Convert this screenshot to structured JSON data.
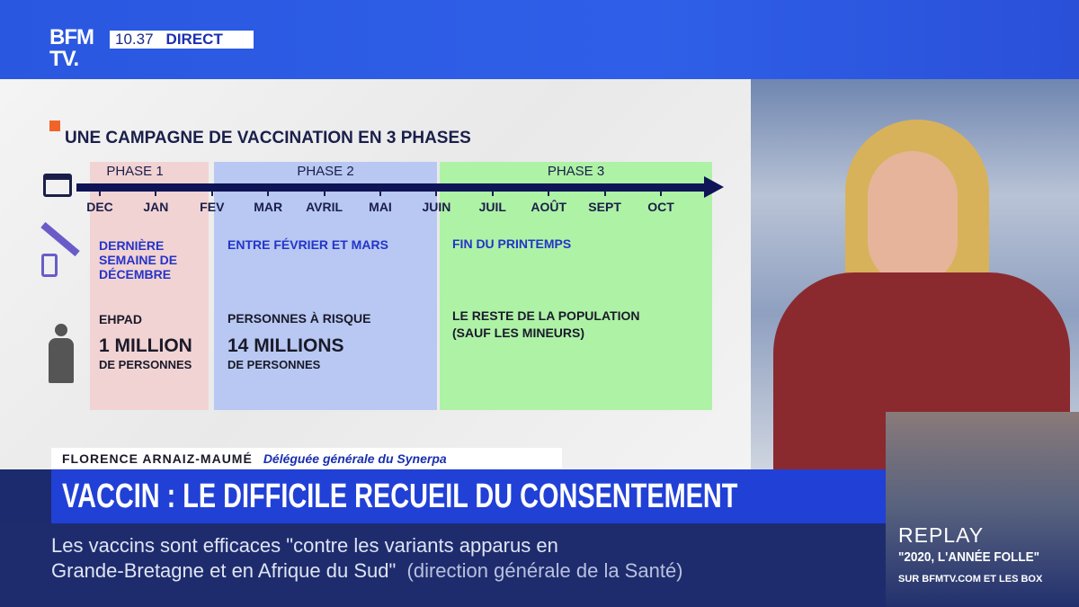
{
  "channel": {
    "logo": "BFM TV.",
    "time": "10.37",
    "live": "DIRECT"
  },
  "graphic": {
    "title": "UNE CAMPAGNE DE VACCINATION EN 3 PHASES",
    "months": [
      "DEC",
      "JAN",
      "FEV",
      "MAR",
      "AVRIL",
      "MAI",
      "JUIN",
      "JUIL",
      "AOÛT",
      "SEPT",
      "OCT"
    ],
    "phases": [
      {
        "label": "PHASE 1",
        "when": "DERNIÈRE SEMAINE DE DÉCEMBRE",
        "who": "EHPAD",
        "count": "1 MILLION",
        "unit": "DE PERSONNES",
        "color": "#f2d3d3"
      },
      {
        "label": "PHASE 2",
        "when": "ENTRE FÉVRIER ET MARS",
        "who": "PERSONNES À RISQUE",
        "count": "14 MILLIONS",
        "unit": "DE PERSONNES",
        "color": "#b8c8f2"
      },
      {
        "label": "PHASE 3",
        "when": "FIN DU PRINTEMPS",
        "who": "LE RESTE DE LA POPULATION",
        "who2": "(SAUF LES MINEURS)",
        "color": "#aef2a6"
      }
    ]
  },
  "lower_third": {
    "name": "FLORENCE ARNAIZ-MAUMÉ",
    "role": "Déléguée générale du Synerpa",
    "headline": "VACCIN : LE DIFFICILE RECUEIL DU CONSENTEMENT"
  },
  "ticker": {
    "line1": "Les vaccins sont efficaces \"contre les variants apparus en",
    "line2": "Grande-Bretagne et en Afrique du Sud\"",
    "source": "(direction générale de la Santé)"
  },
  "replay": {
    "label": "REPLAY",
    "title": "\"2020, L'ANNÉE FOLLE\"",
    "sub": "SUR BFMTV.COM ET LES BOX"
  }
}
